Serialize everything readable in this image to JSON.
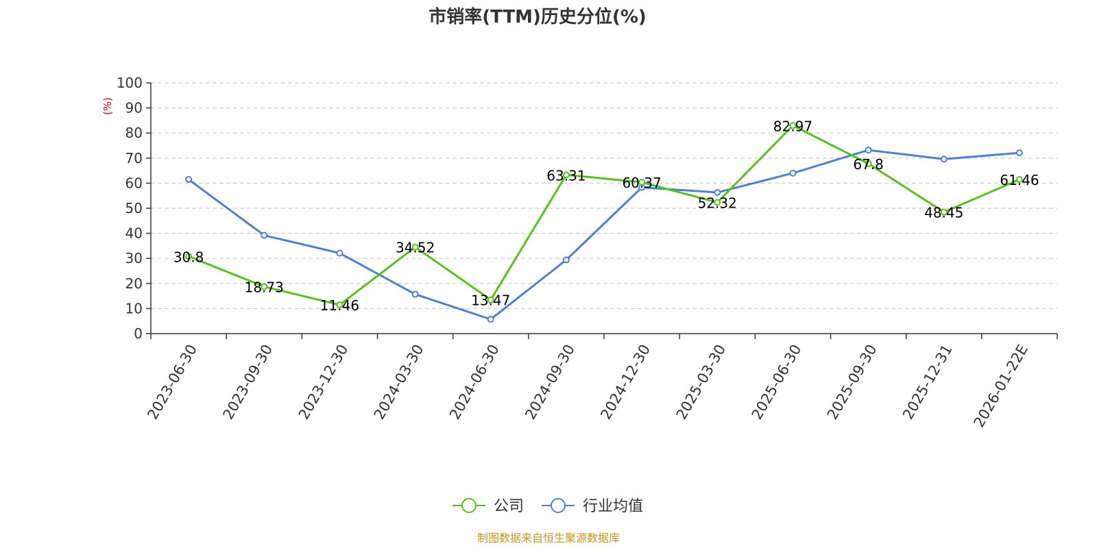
{
  "chart_data": {
    "type": "line",
    "title": "市销率(TTM)历史分位(%)",
    "ylabel": "(%)",
    "xlabel": "",
    "ylim": [
      0,
      100
    ],
    "yticks": [
      0,
      10,
      20,
      30,
      40,
      50,
      60,
      70,
      80,
      90,
      100
    ],
    "grid": true,
    "legend_position": "bottom-center",
    "categories": [
      "2023-06-30",
      "2023-09-30",
      "2023-12-30",
      "2024-03-30",
      "2024-06-30",
      "2024-09-30",
      "2024-12-30",
      "2025-03-30",
      "2025-06-30",
      "2025-09-30",
      "2025-12-31",
      "2026-01-22E"
    ],
    "series": [
      {
        "name": "公司",
        "color": "#52c41a",
        "values": [
          30.8,
          18.73,
          11.46,
          34.52,
          13.47,
          63.31,
          60.37,
          52.32,
          82.97,
          67.8,
          48.45,
          61.46
        ],
        "labels": [
          "30.8",
          "18.73",
          "11.46",
          "34.52",
          "13.47",
          "63.31",
          "60.37",
          "52.32",
          "82.97",
          "67.8",
          "48.45",
          "61.46"
        ]
      },
      {
        "name": "行业均值",
        "color": "#4a7fdb",
        "values": [
          61.5,
          39.2,
          32.1,
          15.7,
          5.7,
          29.4,
          58.3,
          56.3,
          64.0,
          73.2,
          69.6,
          72.1
        ]
      }
    ],
    "source": "制图数据来自恒生聚源数据库",
    "source_color": "#c8961e",
    "ylabel_color": "#e60000"
  }
}
